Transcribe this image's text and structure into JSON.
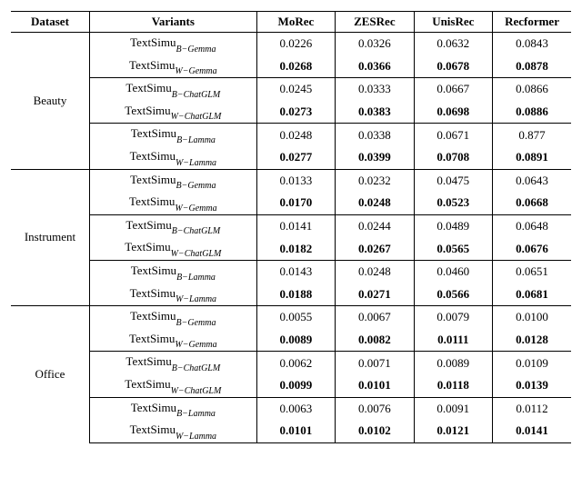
{
  "columns": {
    "dataset": "Dataset",
    "variants": "Variants",
    "metrics": [
      "MoRec",
      "ZESRec",
      "UnisRec",
      "Recformer"
    ]
  },
  "variant_labels": {
    "b_gemma": {
      "base": "TextSimu",
      "sub": "B−Gemma"
    },
    "w_gemma": {
      "base": "TextSimu",
      "sub": "W−Gemma"
    },
    "b_chatglm": {
      "base": "TextSimu",
      "sub": "B−ChatGLM"
    },
    "w_chatglm": {
      "base": "TextSimu",
      "sub": "W−ChatGLM"
    },
    "b_lamma": {
      "base": "TextSimu",
      "sub": "B−Lamma"
    },
    "w_lamma": {
      "base": "TextSimu",
      "sub": "W−Lamma"
    }
  },
  "datasets": [
    {
      "name": "Beauty",
      "groups": [
        {
          "b": [
            "0.0226",
            "0.0326",
            "0.0632",
            "0.0843"
          ],
          "w": [
            "0.0268",
            "0.0366",
            "0.0678",
            "0.0878"
          ],
          "bkey": "b_gemma",
          "wkey": "w_gemma"
        },
        {
          "b": [
            "0.0245",
            "0.0333",
            "0.0667",
            "0.0866"
          ],
          "w": [
            "0.0273",
            "0.0383",
            "0.0698",
            "0.0886"
          ],
          "bkey": "b_chatglm",
          "wkey": "w_chatglm"
        },
        {
          "b": [
            "0.0248",
            "0.0338",
            "0.0671",
            "0.877"
          ],
          "w": [
            "0.0277",
            "0.0399",
            "0.0708",
            "0.0891"
          ],
          "bkey": "b_lamma",
          "wkey": "w_lamma"
        }
      ]
    },
    {
      "name": "Instrument",
      "groups": [
        {
          "b": [
            "0.0133",
            "0.0232",
            "0.0475",
            "0.0643"
          ],
          "w": [
            "0.0170",
            "0.0248",
            "0.0523",
            "0.0668"
          ],
          "bkey": "b_gemma",
          "wkey": "w_gemma"
        },
        {
          "b": [
            "0.0141",
            "0.0244",
            "0.0489",
            "0.0648"
          ],
          "w": [
            "0.0182",
            "0.0267",
            "0.0565",
            "0.0676"
          ],
          "bkey": "b_chatglm",
          "wkey": "w_chatglm"
        },
        {
          "b": [
            "0.0143",
            "0.0248",
            "0.0460",
            "0.0651"
          ],
          "w": [
            "0.0188",
            "0.0271",
            "0.0566",
            "0.0681"
          ],
          "bkey": "b_lamma",
          "wkey": "w_lamma"
        }
      ]
    },
    {
      "name": "Office",
      "groups": [
        {
          "b": [
            "0.0055",
            "0.0067",
            "0.0079",
            "0.0100"
          ],
          "w": [
            "0.0089",
            "0.0082",
            "0.0111",
            "0.0128"
          ],
          "bkey": "b_gemma",
          "wkey": "w_gemma"
        },
        {
          "b": [
            "0.0062",
            "0.0071",
            "0.0089",
            "0.0109"
          ],
          "w": [
            "0.0099",
            "0.0101",
            "0.0118",
            "0.0139"
          ],
          "bkey": "b_chatglm",
          "wkey": "w_chatglm"
        },
        {
          "b": [
            "0.0063",
            "0.0076",
            "0.0091",
            "0.0112"
          ],
          "w": [
            "0.0101",
            "0.0102",
            "0.0121",
            "0.0141"
          ],
          "bkey": "b_lamma",
          "wkey": "w_lamma"
        }
      ]
    }
  ]
}
